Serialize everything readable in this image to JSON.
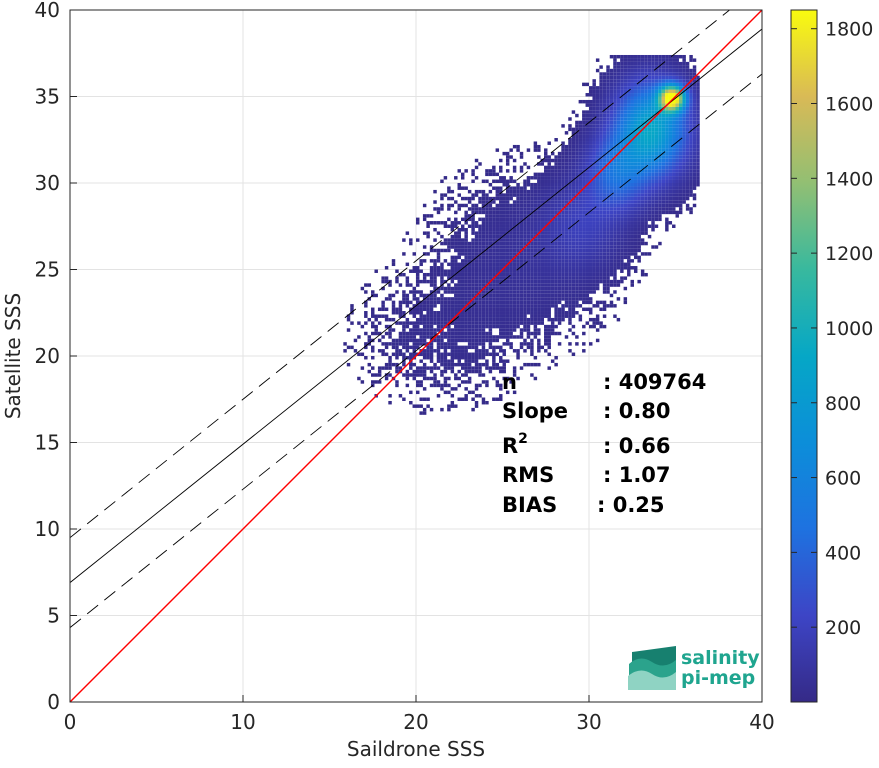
{
  "chart_data": {
    "type": "heatmap",
    "xlabel": "Saildrone SSS",
    "ylabel": "Satellite SSS",
    "xlim": [
      0,
      40
    ],
    "ylim": [
      0,
      40
    ],
    "xticks": [
      "0",
      "10",
      "20",
      "30",
      "40"
    ],
    "yticks": [
      "0",
      "5",
      "10",
      "15",
      "20",
      "25",
      "30",
      "35",
      "40"
    ],
    "grid": true,
    "colorbar": {
      "range": [
        0,
        1850
      ],
      "ticks": [
        "200",
        "400",
        "600",
        "800",
        "1000",
        "1200",
        "1400",
        "1600",
        "1800"
      ],
      "colormap": "parula"
    },
    "lines": {
      "one_to_one": {
        "color": "#ff0000",
        "x": [
          0,
          40
        ],
        "y": [
          0,
          40
        ]
      },
      "regression": {
        "color": "#000000",
        "x": [
          0,
          40
        ],
        "y": [
          6.9,
          38.9
        ]
      },
      "upper_bound": {
        "color": "#000000",
        "style": "dashed",
        "x": [
          0,
          40
        ],
        "y": [
          9.5,
          41.5
        ]
      },
      "lower_bound": {
        "color": "#000000",
        "style": "dashed",
        "x": [
          0,
          40
        ],
        "y": [
          4.3,
          36.3
        ]
      }
    },
    "density_clusters": [
      {
        "x": 33.5,
        "y": 33.0,
        "sx": 1.4,
        "sy": 1.8,
        "peak": 900
      },
      {
        "x": 34.7,
        "y": 34.8,
        "sx": 0.5,
        "sy": 0.5,
        "peak": 1850
      },
      {
        "x": 31.5,
        "y": 30.5,
        "sx": 1.2,
        "sy": 1.5,
        "peak": 400
      },
      {
        "x": 29.5,
        "y": 27.5,
        "sx": 1.6,
        "sy": 1.8,
        "peak": 160
      },
      {
        "x": 26.0,
        "y": 25.5,
        "sx": 3.0,
        "sy": 3.0,
        "peak": 60
      },
      {
        "x": 21.0,
        "y": 21.0,
        "sx": 3.0,
        "sy": 2.5,
        "peak": 30
      }
    ],
    "stats": [
      {
        "label": "n",
        "value": ": 409764"
      },
      {
        "label": "Slope",
        "value": ": 0.80"
      },
      {
        "label": "R",
        "sup": "2",
        "value": ": 0.66"
      },
      {
        "label": "RMS",
        "value": ": 1.07"
      },
      {
        "label": "BIAS",
        "value": ": 0.25"
      }
    ]
  },
  "logo": {
    "line1": "salinity",
    "line2": "pi-mep",
    "color": "#1fa58f"
  }
}
